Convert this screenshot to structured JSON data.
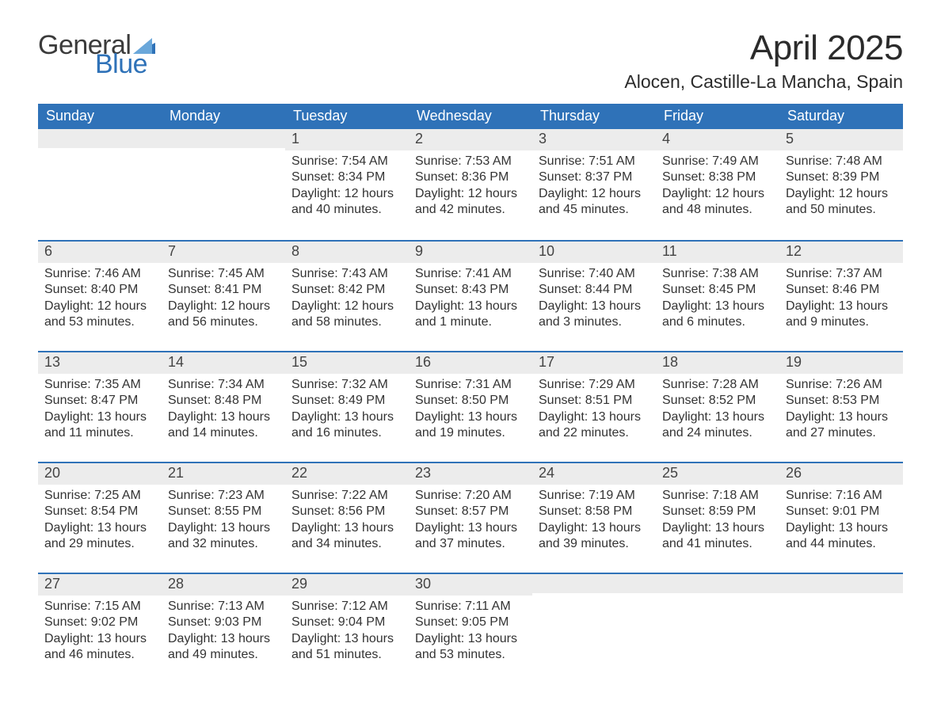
{
  "brand": {
    "line1": "General",
    "line2": "Blue",
    "line1_color": "#3b3b3b",
    "line2_color": "#2f72b8",
    "flag_color": "#2f72b8"
  },
  "title": "April 2025",
  "location": "Alocen, Castille-La Mancha, Spain",
  "colors": {
    "header_bg": "#2f72b8",
    "header_text": "#ffffff",
    "daynum_bg": "#ececec",
    "week_divider": "#2f72b8",
    "body_text": "#333333",
    "background": "#ffffff"
  },
  "typography": {
    "title_fontsize": 44,
    "location_fontsize": 23,
    "header_fontsize": 18,
    "daynum_fontsize": 18,
    "body_fontsize": 16,
    "font_family": "Segoe UI / Helvetica Neue"
  },
  "layout": {
    "columns": 7,
    "rows": 5,
    "first_weekday": "Sunday",
    "month_start_column_index": 2,
    "days_in_month": 30
  },
  "weekdays": [
    "Sunday",
    "Monday",
    "Tuesday",
    "Wednesday",
    "Thursday",
    "Friday",
    "Saturday"
  ],
  "weeks": [
    [
      null,
      null,
      {
        "n": "1",
        "sunrise": "Sunrise: 7:54 AM",
        "sunset": "Sunset: 8:34 PM",
        "daylight": "Daylight: 12 hours and 40 minutes."
      },
      {
        "n": "2",
        "sunrise": "Sunrise: 7:53 AM",
        "sunset": "Sunset: 8:36 PM",
        "daylight": "Daylight: 12 hours and 42 minutes."
      },
      {
        "n": "3",
        "sunrise": "Sunrise: 7:51 AM",
        "sunset": "Sunset: 8:37 PM",
        "daylight": "Daylight: 12 hours and 45 minutes."
      },
      {
        "n": "4",
        "sunrise": "Sunrise: 7:49 AM",
        "sunset": "Sunset: 8:38 PM",
        "daylight": "Daylight: 12 hours and 48 minutes."
      },
      {
        "n": "5",
        "sunrise": "Sunrise: 7:48 AM",
        "sunset": "Sunset: 8:39 PM",
        "daylight": "Daylight: 12 hours and 50 minutes."
      }
    ],
    [
      {
        "n": "6",
        "sunrise": "Sunrise: 7:46 AM",
        "sunset": "Sunset: 8:40 PM",
        "daylight": "Daylight: 12 hours and 53 minutes."
      },
      {
        "n": "7",
        "sunrise": "Sunrise: 7:45 AM",
        "sunset": "Sunset: 8:41 PM",
        "daylight": "Daylight: 12 hours and 56 minutes."
      },
      {
        "n": "8",
        "sunrise": "Sunrise: 7:43 AM",
        "sunset": "Sunset: 8:42 PM",
        "daylight": "Daylight: 12 hours and 58 minutes."
      },
      {
        "n": "9",
        "sunrise": "Sunrise: 7:41 AM",
        "sunset": "Sunset: 8:43 PM",
        "daylight": "Daylight: 13 hours and 1 minute."
      },
      {
        "n": "10",
        "sunrise": "Sunrise: 7:40 AM",
        "sunset": "Sunset: 8:44 PM",
        "daylight": "Daylight: 13 hours and 3 minutes."
      },
      {
        "n": "11",
        "sunrise": "Sunrise: 7:38 AM",
        "sunset": "Sunset: 8:45 PM",
        "daylight": "Daylight: 13 hours and 6 minutes."
      },
      {
        "n": "12",
        "sunrise": "Sunrise: 7:37 AM",
        "sunset": "Sunset: 8:46 PM",
        "daylight": "Daylight: 13 hours and 9 minutes."
      }
    ],
    [
      {
        "n": "13",
        "sunrise": "Sunrise: 7:35 AM",
        "sunset": "Sunset: 8:47 PM",
        "daylight": "Daylight: 13 hours and 11 minutes."
      },
      {
        "n": "14",
        "sunrise": "Sunrise: 7:34 AM",
        "sunset": "Sunset: 8:48 PM",
        "daylight": "Daylight: 13 hours and 14 minutes."
      },
      {
        "n": "15",
        "sunrise": "Sunrise: 7:32 AM",
        "sunset": "Sunset: 8:49 PM",
        "daylight": "Daylight: 13 hours and 16 minutes."
      },
      {
        "n": "16",
        "sunrise": "Sunrise: 7:31 AM",
        "sunset": "Sunset: 8:50 PM",
        "daylight": "Daylight: 13 hours and 19 minutes."
      },
      {
        "n": "17",
        "sunrise": "Sunrise: 7:29 AM",
        "sunset": "Sunset: 8:51 PM",
        "daylight": "Daylight: 13 hours and 22 minutes."
      },
      {
        "n": "18",
        "sunrise": "Sunrise: 7:28 AM",
        "sunset": "Sunset: 8:52 PM",
        "daylight": "Daylight: 13 hours and 24 minutes."
      },
      {
        "n": "19",
        "sunrise": "Sunrise: 7:26 AM",
        "sunset": "Sunset: 8:53 PM",
        "daylight": "Daylight: 13 hours and 27 minutes."
      }
    ],
    [
      {
        "n": "20",
        "sunrise": "Sunrise: 7:25 AM",
        "sunset": "Sunset: 8:54 PM",
        "daylight": "Daylight: 13 hours and 29 minutes."
      },
      {
        "n": "21",
        "sunrise": "Sunrise: 7:23 AM",
        "sunset": "Sunset: 8:55 PM",
        "daylight": "Daylight: 13 hours and 32 minutes."
      },
      {
        "n": "22",
        "sunrise": "Sunrise: 7:22 AM",
        "sunset": "Sunset: 8:56 PM",
        "daylight": "Daylight: 13 hours and 34 minutes."
      },
      {
        "n": "23",
        "sunrise": "Sunrise: 7:20 AM",
        "sunset": "Sunset: 8:57 PM",
        "daylight": "Daylight: 13 hours and 37 minutes."
      },
      {
        "n": "24",
        "sunrise": "Sunrise: 7:19 AM",
        "sunset": "Sunset: 8:58 PM",
        "daylight": "Daylight: 13 hours and 39 minutes."
      },
      {
        "n": "25",
        "sunrise": "Sunrise: 7:18 AM",
        "sunset": "Sunset: 8:59 PM",
        "daylight": "Daylight: 13 hours and 41 minutes."
      },
      {
        "n": "26",
        "sunrise": "Sunrise: 7:16 AM",
        "sunset": "Sunset: 9:01 PM",
        "daylight": "Daylight: 13 hours and 44 minutes."
      }
    ],
    [
      {
        "n": "27",
        "sunrise": "Sunrise: 7:15 AM",
        "sunset": "Sunset: 9:02 PM",
        "daylight": "Daylight: 13 hours and 46 minutes."
      },
      {
        "n": "28",
        "sunrise": "Sunrise: 7:13 AM",
        "sunset": "Sunset: 9:03 PM",
        "daylight": "Daylight: 13 hours and 49 minutes."
      },
      {
        "n": "29",
        "sunrise": "Sunrise: 7:12 AM",
        "sunset": "Sunset: 9:04 PM",
        "daylight": "Daylight: 13 hours and 51 minutes."
      },
      {
        "n": "30",
        "sunrise": "Sunrise: 7:11 AM",
        "sunset": "Sunset: 9:05 PM",
        "daylight": "Daylight: 13 hours and 53 minutes."
      },
      null,
      null,
      null
    ]
  ]
}
